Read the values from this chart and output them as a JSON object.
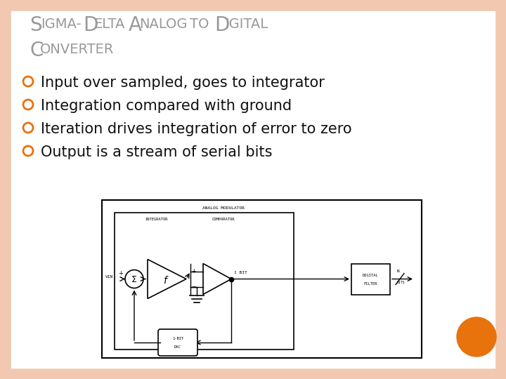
{
  "background_color": "#FFFFFF",
  "border_color": "#F2C8B0",
  "title_line1": "Sigma-Delta Analog to Digital",
  "title_line2": "Converter",
  "title_color": "#999999",
  "title_fontsize": 18,
  "bullet_color": "#E8720C",
  "bullet_items": [
    "Input over sampled, goes to integrator",
    "Integration compared with ground",
    "Iteration drives integration of error to zero",
    "Output is a stream of serial bits"
  ],
  "bullet_fontsize": 15,
  "orange_circle_color": "#E8720C",
  "diagram_bg": "#FFFFFF",
  "diagram_border": "#000000"
}
